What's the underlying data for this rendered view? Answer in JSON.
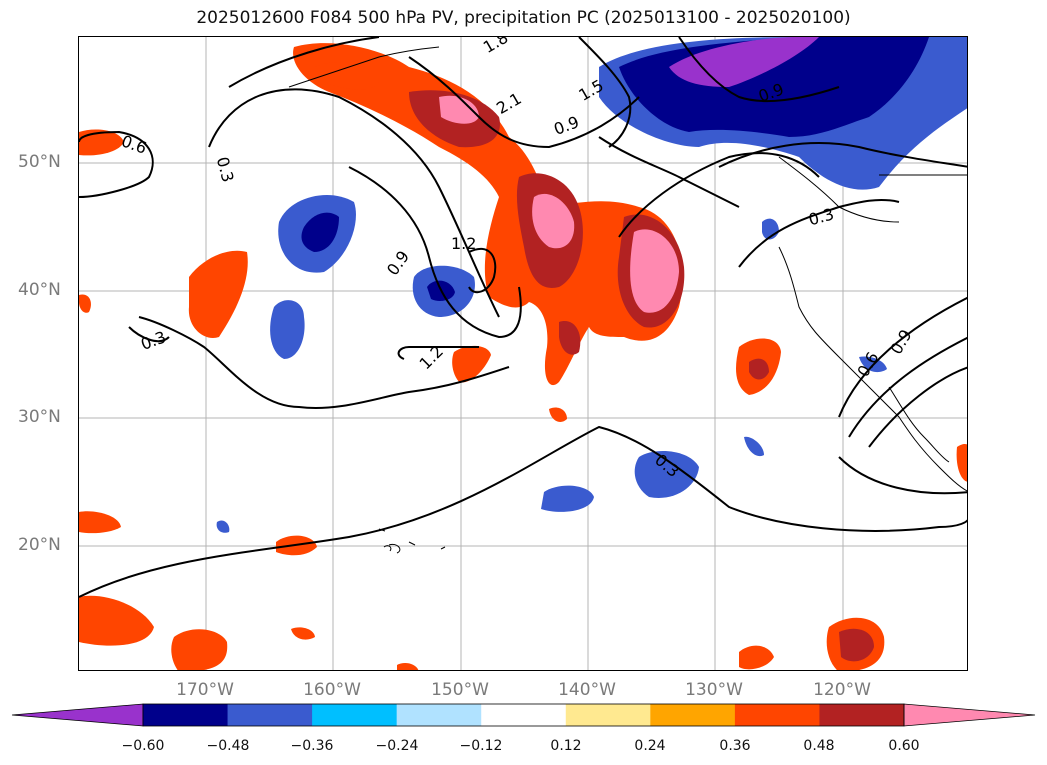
{
  "title": "2025012600 F084 500 hPa PV, precipitation PC (2025013100 - 2025020100)",
  "lat_labels": [
    "50°N",
    "40°N",
    "30°N",
    "20°N"
  ],
  "lon_labels": [
    "170°W",
    "160°W",
    "150°W",
    "140°W",
    "130°W",
    "120°W"
  ],
  "contour_labels": [
    "1.2",
    "0.9",
    "0.3",
    "0.3",
    "0.6",
    "2.1",
    "1.5",
    "0.9",
    "0.3",
    "0.3",
    "0.6",
    "0.9",
    "1.2",
    "0.9",
    "1.8"
  ],
  "colorbar": {
    "ticks": [
      "−0.60",
      "−0.48",
      "−0.36",
      "−0.24",
      "−0.12",
      "0.12",
      "0.24",
      "0.36",
      "0.48",
      "0.60"
    ],
    "colors": [
      "#9932cc",
      "#00008b",
      "#3a5bcf",
      "#00bfff",
      "#b0e2ff",
      "#ffffff",
      "#ffe990",
      "#ffa500",
      "#ff4500",
      "#b22222",
      "#ff89b0",
      "#ff89b0"
    ]
  }
}
